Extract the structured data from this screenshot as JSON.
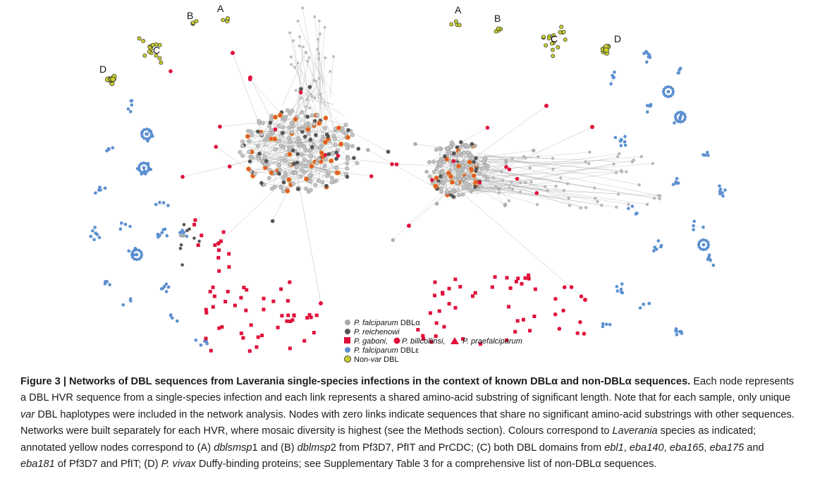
{
  "figure": {
    "labels_left": {
      "a": "A",
      "b": "B",
      "c": "C",
      "d": "D"
    },
    "labels_right": {
      "a": "A",
      "b": "B",
      "c": "C",
      "d": "D"
    },
    "legend": {
      "falciparum_dbla_species": "P. falciparum",
      "falciparum_dbla_suffix": " DBLα",
      "reichenowi": "P. reichenowi",
      "gaboni": "P. gaboni,",
      "billcollinsi": "P. billcollinsi,",
      "praefalciparum": "P. praefalciparum",
      "falciparum_dble_species": "P. falciparum",
      "falciparum_dble_suffix": " DBLε",
      "nonvar_prefix": "Non-",
      "nonvar_italic": "var",
      "nonvar_suffix": " DBL"
    },
    "colors": {
      "falciparum_dbla": "#a8a8a8",
      "reichenowi": "#555555",
      "gaboni": "#e0103a",
      "falciparum_dble": "#5b8fd0",
      "nonvar": "#c9cf2b",
      "edge": "#9a9a9a",
      "core_highlight": "#e8a23a"
    }
  },
  "caption": {
    "title": "Figure 3 | Networks of DBL sequences from Laverania single-species infections in the context of known DBLα and non-DBLα sequences.",
    "sentence1": " Each node represents a DBL HVR sequence from a single-species infection and each link represents a shared amino-acid substring of significant length. Note that for each sample, only unique ",
    "var1": "var",
    "sentence2": " DBL haplotypes were included in the network analysis. Nodes with zero links indicate sequences that share no significant amino-acid substrings with other sequences. Networks were built separately for each HVR, where mosaic diversity is highest (see the Methods section). Colours correspond to ",
    "laverania": "Laverania",
    "sentence3": " species as indicated; annotated yellow nodes correspond to (A) ",
    "dblsmsp1": "dblsmsp",
    "num1": "1 and (B) ",
    "dblsmsp2": "dblmsp",
    "num2": "2 from Pf3D7, PfIT and PrCDC; (C) both DBL domains from ",
    "ebl1": "ebl1",
    "c1": ", ",
    "eba140": "eba140",
    "c2": ", ",
    "eba165": "eba165",
    "c3": ", ",
    "eba175": "eba175",
    "c4": " and ",
    "eba181": "eba181",
    "sentence4": " of Pf3D7 and PfIT; (D) ",
    "vivax": "P. vivax",
    "sentence5": " Duffy-binding proteins; see Supplementary Table 3 for a comprehensive list of non-DBLα sequences."
  }
}
